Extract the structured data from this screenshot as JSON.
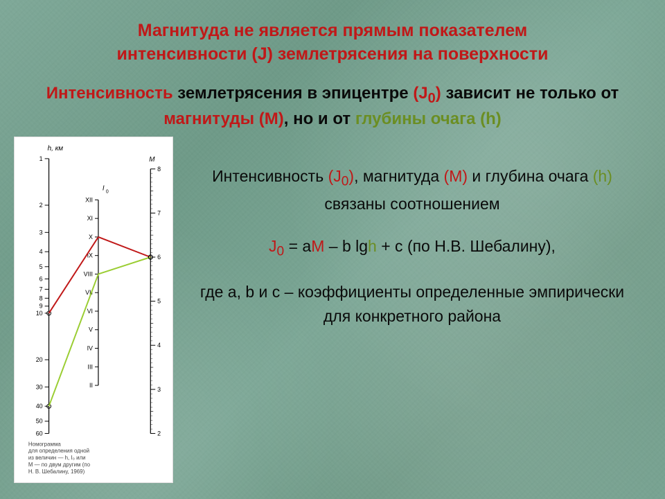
{
  "title_line1": "Магнитуда не является прямым показателем",
  "title_line2": "интенсивности (J) землетрясения на поверхности",
  "subtitle_plain1": "Интенсивность",
  "subtitle_plain2": " землетрясения в эпицентре ",
  "subtitle_j0": "(J",
  "subtitle_j0sub": "0",
  "subtitle_j0close": ")",
  "subtitle_plain3": " зависит не только от ",
  "subtitle_mag": "магнитуды (M)",
  "subtitle_plain4": ", но и от ",
  "subtitle_depth": "глубины очага (h)",
  "body1_a": "Интенсивность ",
  "body1_j0": "(J",
  "body1_j0sub": "0",
  "body1_j0close": ")",
  "body1_b": ", магнитуда ",
  "body1_M": "(M)",
  "body1_c": " и глубина очага ",
  "body1_h": "(h)",
  "body1_d": " связаны соотношением",
  "formula_a": "J",
  "formula_sub": "0",
  "formula_b": " = a",
  "formula_M": "M",
  "formula_c": " – b lg",
  "formula_h": "h",
  "formula_d": " + c (по Н.В. Шебалину),",
  "body3": "где a, b и c – коэффициенты определенные эмпирически для конкретного района",
  "nomogram": {
    "caption1": "Номограмма",
    "caption2": "для определения одной",
    "caption3": "из величин — h, I₀ или",
    "caption4": "M — по двум другим (по",
    "caption5": "Н. В. Шебалину, 1969)",
    "h_axis": {
      "label": "h, км",
      "ticks": [
        1,
        2,
        3,
        4,
        5,
        6,
        7,
        8,
        9,
        10,
        20,
        30,
        40,
        50,
        60
      ],
      "highlight": [
        10,
        40
      ],
      "line_color": "#000000"
    },
    "i_axis": {
      "label": "I₀",
      "ticks_roman": [
        "XII",
        "XI",
        "X",
        "IX",
        "VIII",
        "VII",
        "VI",
        "V",
        "IV",
        "III",
        "II"
      ],
      "line_color": "#000000"
    },
    "m_axis": {
      "label": "M",
      "ticks": [
        8,
        7,
        6,
        5,
        4,
        3,
        2
      ],
      "line_color": "#000000"
    },
    "example_lines": {
      "red": {
        "color": "#c01818",
        "width": 2,
        "from_h": 10,
        "through_I": "X",
        "to_M_approx": 6.0
      },
      "green": {
        "color": "#9acd32",
        "width": 2,
        "from_h": 40,
        "through_I": "VIII",
        "to_M_approx": 6.0
      }
    },
    "bg": "#ffffff",
    "tick_font": 9,
    "label_font": 10
  },
  "colors": {
    "title_red": "#c01818",
    "olive": "#6b8e23",
    "text": "#0a0a0a",
    "slide_bg_base": "#7aa594"
  }
}
